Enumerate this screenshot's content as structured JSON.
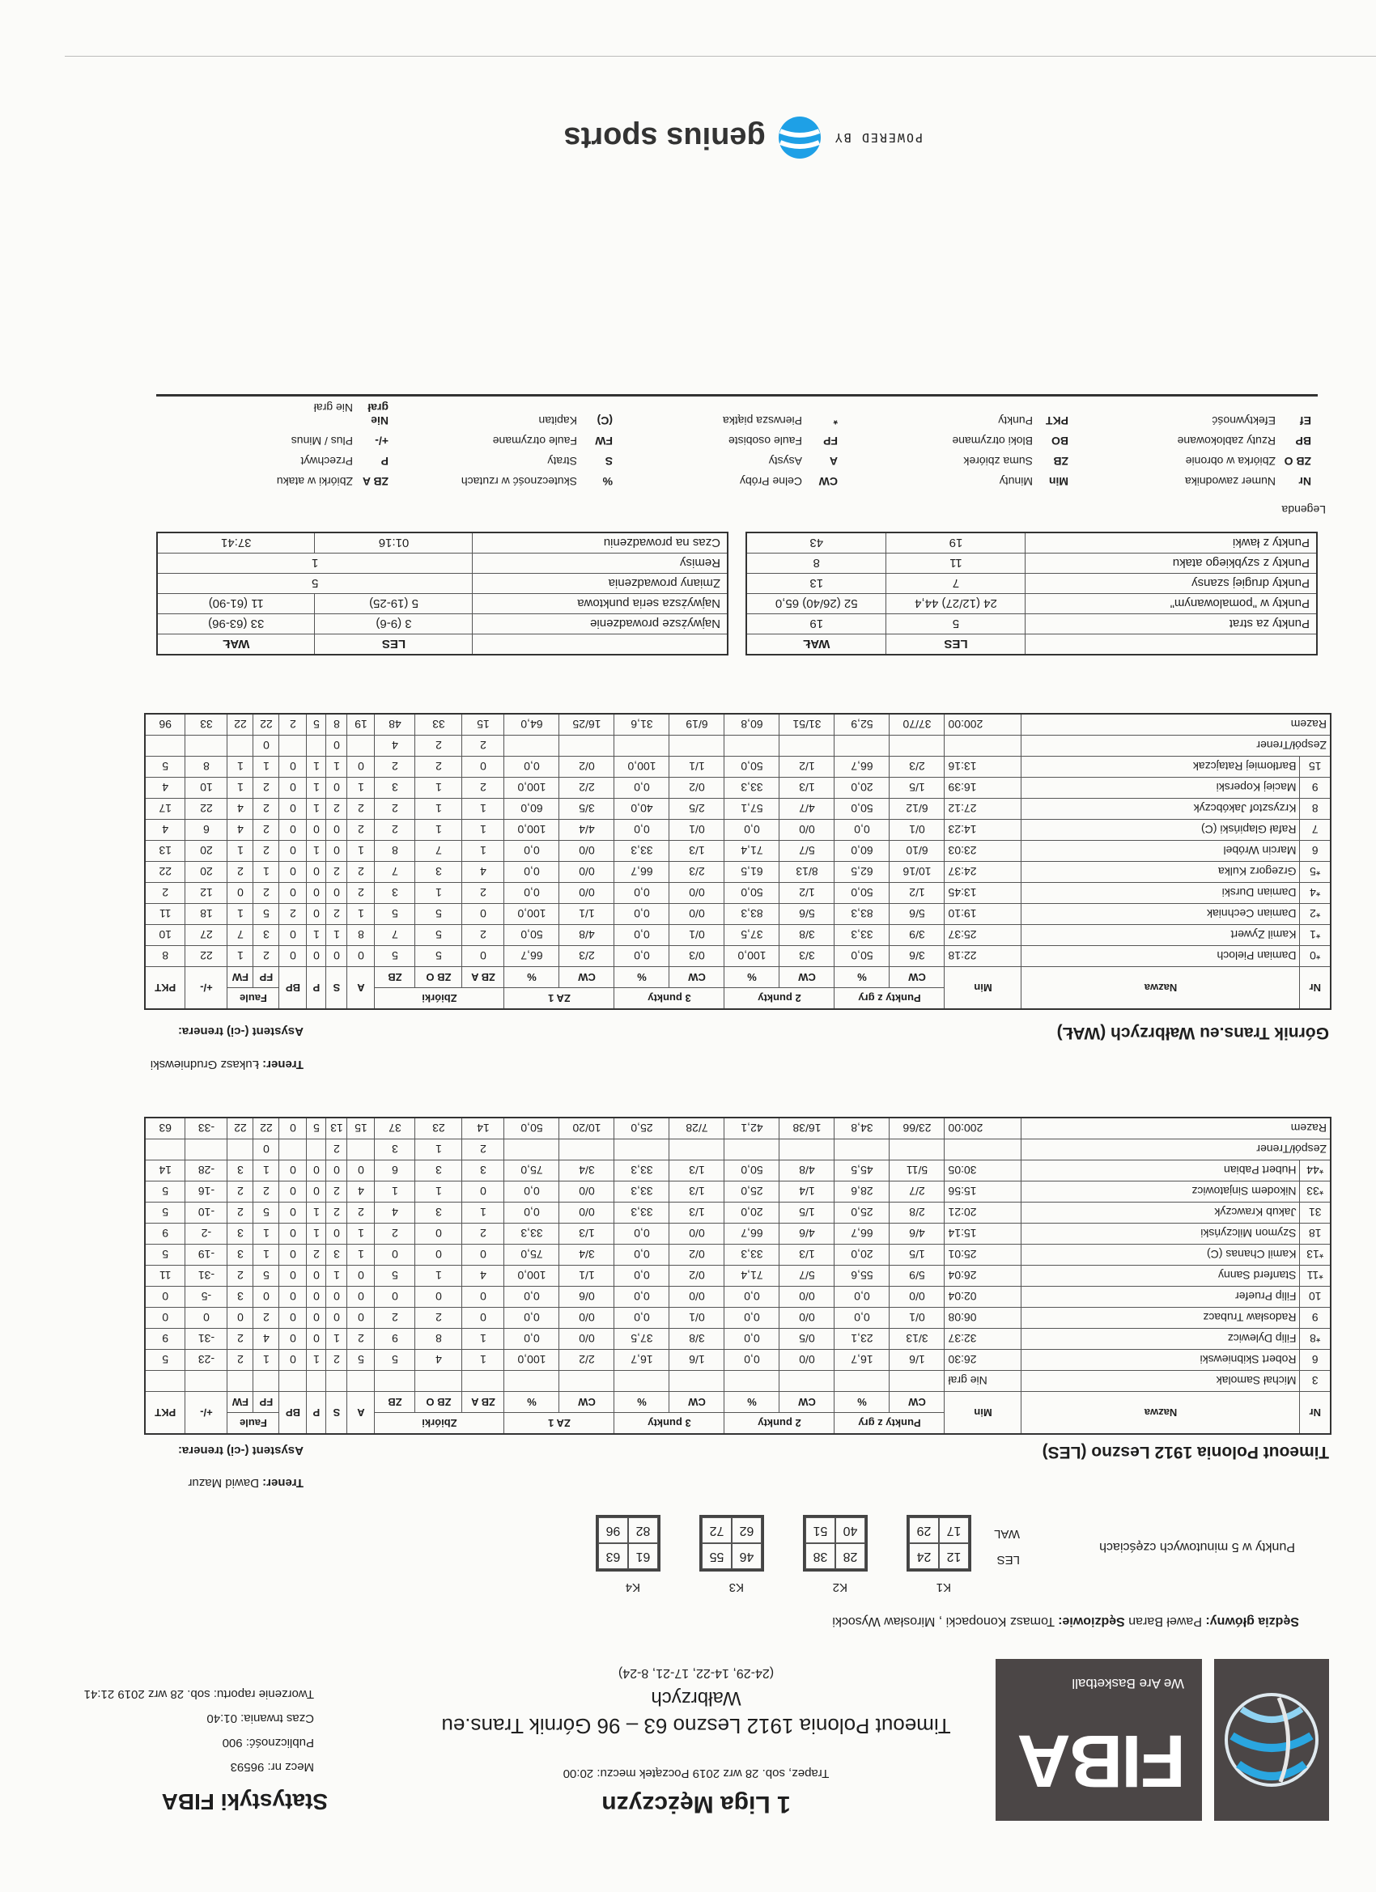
{
  "header": {
    "league": "1 Liga Mężczyzn",
    "venue_line": "Trapez, sob. 28 wrz 2019 Początek meczu: 20:00",
    "match_title": "Timeout Polonia 1912 Leszno 63 – 96 Górnik Trans.eu",
    "match_title_2": "Wałbrzych",
    "quarters_line": "(24-29, 14-22, 17-21, 8-24)",
    "brand_title": "Statystyki FIBA",
    "match_no": "Mecz nr: 96593",
    "attendance": "Publiczność: 900",
    "duration": "Czas trwania: 01:40",
    "report_created": "Tworzenie raportu: sob. 28 wrz 2019 21:41",
    "fiba_logo": "FIBA",
    "fiba_tagline": "We Are Basketball"
  },
  "officials": {
    "chief_label": "Sędzia główny:",
    "chief": "Paweł Baran",
    "refs_label": "Sędziowie:",
    "refs": "Tomasz Konopacki , Mirosław Wysocki"
  },
  "periods": {
    "label": "Punkty w 5 minutowych częściach",
    "teams": [
      "LES",
      "WAL"
    ],
    "quarters": [
      {
        "label": "K1",
        "les": [
          "12",
          "24"
        ],
        "wal": [
          "17",
          "29"
        ]
      },
      {
        "label": "K2",
        "les": [
          "28",
          "38"
        ],
        "wal": [
          "40",
          "51"
        ]
      },
      {
        "label": "K3",
        "les": [
          "46",
          "55"
        ],
        "wal": [
          "62",
          "72"
        ]
      },
      {
        "label": "K4",
        "les": [
          "61",
          "63"
        ],
        "wal": [
          "82",
          "96"
        ]
      }
    ]
  },
  "columns": {
    "nr": "Nr",
    "name": "Nazwa",
    "min": "Min",
    "groups": [
      "Punkty z gry",
      "2 punkty",
      "3 punkty",
      "ZA 1",
      "Zbiórki",
      "Faule"
    ],
    "cw": "CW",
    "pct": "%",
    "zba": "ZB A",
    "zbo": "ZB O",
    "zb": "ZB",
    "a": "A",
    "s": "S",
    "p": "P",
    "bp": "BP",
    "fp": "FP",
    "fw": "FW",
    "pm": "+/-",
    "pkt": "PKT"
  },
  "les": {
    "title": "Timeout Polonia 1912 Leszno (LES)",
    "coach_label": "Trener:",
    "coach": "Dawid Mazur",
    "assistant_label": "Asystent (-ci) trenera:",
    "players": [
      {
        "nr": "3",
        "name": "Michał Samolak",
        "vals": [
          "Nie grał"
        ]
      },
      {
        "nr": "6",
        "name": "Robert Skibniewski",
        "vals": [
          "26:30",
          "1/6",
          "16,7",
          "0/0",
          "0,0",
          "1/6",
          "16,7",
          "2/2",
          "100,0",
          "1",
          "4",
          "5",
          "5",
          "2",
          "1",
          "0",
          "1",
          "2",
          "-23",
          "5"
        ]
      },
      {
        "nr": "*8",
        "name": "Filip Dylewicz",
        "vals": [
          "32:37",
          "3/13",
          "23,1",
          "0/5",
          "0,0",
          "3/8",
          "37,5",
          "0/0",
          "0,0",
          "1",
          "8",
          "9",
          "2",
          "1",
          "0",
          "0",
          "4",
          "2",
          "-31",
          "9"
        ]
      },
      {
        "nr": "9",
        "name": "Radosław Trubacz",
        "vals": [
          "06:08",
          "0/1",
          "0,0",
          "0/0",
          "0,0",
          "0/1",
          "0,0",
          "0/0",
          "0,0",
          "0",
          "2",
          "2",
          "0",
          "0",
          "0",
          "0",
          "2",
          "0",
          "0",
          "0"
        ]
      },
      {
        "nr": "10",
        "name": "Filip Pruefer",
        "vals": [
          "02:04",
          "0/0",
          "0,0",
          "0/0",
          "0,0",
          "0/0",
          "0,0",
          "0/6",
          "0,0",
          "0",
          "0",
          "0",
          "0",
          "0",
          "0",
          "0",
          "0",
          "3",
          "-5",
          "0"
        ]
      },
      {
        "nr": "*11",
        "name": "Stanferd Sanny",
        "vals": [
          "26:04",
          "5/9",
          "55,6",
          "5/7",
          "71,4",
          "0/2",
          "0,0",
          "1/1",
          "100,0",
          "4",
          "1",
          "5",
          "0",
          "1",
          "0",
          "0",
          "5",
          "2",
          "-31",
          "11"
        ]
      },
      {
        "nr": "*13",
        "name": "Kamil Chanas (C)",
        "vals": [
          "25:01",
          "1/5",
          "20,0",
          "1/3",
          "33,3",
          "0/2",
          "0,0",
          "3/4",
          "75,0",
          "0",
          "0",
          "0",
          "1",
          "3",
          "2",
          "0",
          "1",
          "3",
          "-19",
          "5"
        ]
      },
      {
        "nr": "18",
        "name": "Szymon Milczyński",
        "vals": [
          "15:14",
          "4/6",
          "66,7",
          "4/6",
          "66,7",
          "0/0",
          "0,0",
          "1/3",
          "33,3",
          "2",
          "0",
          "2",
          "1",
          "0",
          "1",
          "0",
          "1",
          "3",
          "-2",
          "9"
        ]
      },
      {
        "nr": "31",
        "name": "Jakub Krawczyk",
        "vals": [
          "20:21",
          "2/8",
          "25,0",
          "1/5",
          "20,0",
          "1/3",
          "33,3",
          "0/0",
          "0,0",
          "1",
          "3",
          "4",
          "2",
          "2",
          "1",
          "0",
          "5",
          "2",
          "-10",
          "5"
        ]
      },
      {
        "nr": "*33",
        "name": "Nikodem Sinjatowicz",
        "vals": [
          "15:56",
          "2/7",
          "28,6",
          "1/4",
          "25,0",
          "1/3",
          "33,3",
          "0/0",
          "0,0",
          "0",
          "1",
          "1",
          "4",
          "2",
          "0",
          "0",
          "2",
          "2",
          "-16",
          "5"
        ]
      },
      {
        "nr": "*44",
        "name": "Hubert Pabian",
        "vals": [
          "30:05",
          "5/11",
          "45,5",
          "4/8",
          "50,0",
          "1/3",
          "33,3",
          "3/4",
          "75,0",
          "3",
          "3",
          "6",
          "0",
          "0",
          "0",
          "0",
          "1",
          "3",
          "-28",
          "14"
        ]
      }
    ],
    "team_row": {
      "name": "Zespół/Trener",
      "vals": [
        "",
        "",
        "",
        "",
        "",
        "",
        "",
        "",
        "",
        "2",
        "1",
        "3",
        "",
        "2",
        "",
        "",
        "0",
        "",
        "",
        ""
      ]
    },
    "total_row": {
      "name": "Razem",
      "vals": [
        "200:00",
        "23/66",
        "34,8",
        "16/38",
        "42,1",
        "7/28",
        "25,0",
        "10/20",
        "50,0",
        "14",
        "23",
        "37",
        "15",
        "13",
        "5",
        "0",
        "22",
        "22",
        "-33",
        "63"
      ]
    }
  },
  "wal": {
    "title": "Górnik Trans.eu Wałbrzych (WAŁ)",
    "coach_label": "Trener:",
    "coach": "Łukasz Grudniewski",
    "assistant_label": "Asystent (-ci) trenera:",
    "players": [
      {
        "nr": "*0",
        "name": "Damian Pieloch",
        "vals": [
          "22:18",
          "3/6",
          "50,0",
          "3/3",
          "100,0",
          "0/3",
          "0,0",
          "2/3",
          "66,7",
          "0",
          "5",
          "5",
          "0",
          "0",
          "0",
          "0",
          "2",
          "1",
          "22",
          "8"
        ]
      },
      {
        "nr": "*1",
        "name": "Kamil Zywert",
        "vals": [
          "25:37",
          "3/9",
          "33,3",
          "3/8",
          "37,5",
          "0/1",
          "0,0",
          "4/8",
          "50,0",
          "2",
          "5",
          "7",
          "8",
          "1",
          "1",
          "0",
          "3",
          "7",
          "27",
          "10"
        ]
      },
      {
        "nr": "*2",
        "name": "Damian Cechniak",
        "vals": [
          "19:10",
          "5/6",
          "83,3",
          "5/6",
          "83,3",
          "0/0",
          "0,0",
          "1/1",
          "100,0",
          "0",
          "5",
          "5",
          "1",
          "2",
          "0",
          "2",
          "5",
          "1",
          "18",
          "11"
        ]
      },
      {
        "nr": "*4",
        "name": "Damian Durski",
        "vals": [
          "13:45",
          "1/2",
          "50,0",
          "1/2",
          "50,0",
          "0/0",
          "0,0",
          "0/0",
          "0,0",
          "2",
          "1",
          "3",
          "2",
          "0",
          "0",
          "0",
          "2",
          "0",
          "12",
          "2"
        ]
      },
      {
        "nr": "*5",
        "name": "Grzegorz Kulka",
        "vals": [
          "24:37",
          "10/16",
          "62,5",
          "8/13",
          "61,5",
          "2/3",
          "66,7",
          "0/0",
          "0,0",
          "4",
          "3",
          "7",
          "2",
          "2",
          "0",
          "0",
          "1",
          "2",
          "20",
          "22"
        ]
      },
      {
        "nr": "6",
        "name": "Marcin Wróbel",
        "vals": [
          "23:03",
          "6/10",
          "60,0",
          "5/7",
          "71,4",
          "1/3",
          "33,3",
          "0/0",
          "0,0",
          "1",
          "7",
          "8",
          "1",
          "0",
          "1",
          "0",
          "2",
          "1",
          "20",
          "13"
        ]
      },
      {
        "nr": "7",
        "name": "Rafał Glapiński (C)",
        "vals": [
          "14:23",
          "0/1",
          "0,0",
          "0/0",
          "0,0",
          "0/1",
          "0,0",
          "4/4",
          "100,0",
          "1",
          "1",
          "2",
          "2",
          "0",
          "0",
          "0",
          "2",
          "4",
          "6",
          "4"
        ]
      },
      {
        "nr": "8",
        "name": "Krzysztof Jakóbczyk",
        "vals": [
          "27:12",
          "6/12",
          "50,0",
          "4/7",
          "57,1",
          "2/5",
          "40,0",
          "3/5",
          "60,0",
          "1",
          "1",
          "2",
          "2",
          "2",
          "1",
          "0",
          "2",
          "4",
          "22",
          "17"
        ]
      },
      {
        "nr": "9",
        "name": "Maciej Koperski",
        "vals": [
          "16:39",
          "1/5",
          "20,0",
          "1/3",
          "33,3",
          "0/2",
          "0,0",
          "2/2",
          "100,0",
          "2",
          "1",
          "3",
          "1",
          "0",
          "1",
          "0",
          "2",
          "1",
          "10",
          "4"
        ]
      },
      {
        "nr": "15",
        "name": "Bartłomiej Ratajczak",
        "vals": [
          "13:16",
          "2/3",
          "66,7",
          "1/2",
          "50,0",
          "1/1",
          "100,0",
          "0/2",
          "0,0",
          "0",
          "2",
          "2",
          "0",
          "1",
          "1",
          "0",
          "1",
          "1",
          "8",
          "5"
        ]
      }
    ],
    "team_row": {
      "name": "Zespół/Trener",
      "vals": [
        "",
        "",
        "",
        "",
        "",
        "",
        "",
        "",
        "",
        "2",
        "2",
        "4",
        "",
        "0",
        "",
        "",
        "0",
        "",
        "",
        ""
      ]
    },
    "total_row": {
      "name": "Razem",
      "vals": [
        "200:00",
        "37/70",
        "52,9",
        "31/51",
        "60,8",
        "6/19",
        "31,6",
        "16/25",
        "64,0",
        "15",
        "33",
        "48",
        "19",
        "8",
        "5",
        "2",
        "22",
        "22",
        "33",
        "96"
      ]
    }
  },
  "scoring": {
    "head": [
      "LES",
      "WAŁ"
    ],
    "rows": [
      {
        "label": "Punkty za strat",
        "les": "5",
        "wal": "19"
      },
      {
        "label": "Punkty w \"pomalowanym\"",
        "les": "24 (12/27) 44,4",
        "wal": "52 (26/40) 65,0"
      },
      {
        "label": "Punkty drugiej szansy",
        "les": "7",
        "wal": "13"
      },
      {
        "label": "Punkty z szybkiego ataku",
        "les": "11",
        "wal": "8"
      },
      {
        "label": "Punkty z ławki",
        "les": "19",
        "wal": "43"
      }
    ]
  },
  "leads": {
    "head": [
      "LES",
      "WAŁ"
    ],
    "rows": [
      {
        "label": "Najwyższe prowadzenie",
        "les": "3 (9-6)",
        "wal": "33 (63-96)"
      },
      {
        "label": "Najwyższa seria punktowa",
        "les": "5 (19-25)",
        "wal": "11 (61-90)"
      }
    ],
    "lead_changes_label": "Zmiany prowadzenia",
    "lead_changes": "5",
    "ties_label": "Remisy",
    "ties": "1",
    "time_leading_label": "Czas na prowadzeniu",
    "time_leading_les": "01:16",
    "time_leading_wal": "37:41"
  },
  "legend": {
    "title": "Legenda",
    "items": [
      {
        "abbr": "Nr",
        "desc": "Numer zawodnika"
      },
      {
        "abbr": "Min",
        "desc": "Minuty"
      },
      {
        "abbr": "CW",
        "desc": "Celne Próby"
      },
      {
        "abbr": "%",
        "desc": "Skuteczność w rzutach"
      },
      {
        "abbr": "ZB A",
        "desc": "Zbiórki w ataku"
      },
      {
        "abbr": "ZB O",
        "desc": "Zbiórka w obronie"
      },
      {
        "abbr": "ZB",
        "desc": "Suma zbiórek"
      },
      {
        "abbr": "A",
        "desc": "Asysty"
      },
      {
        "abbr": "S",
        "desc": "Straty"
      },
      {
        "abbr": "P",
        "desc": "Przechwyt"
      },
      {
        "abbr": "BP",
        "desc": "Rzuty zablokowane"
      },
      {
        "abbr": "BO",
        "desc": "Bloki otrzymane"
      },
      {
        "abbr": "FP",
        "desc": "Faule osobiste"
      },
      {
        "abbr": "FW",
        "desc": "Faule otrzymane"
      },
      {
        "abbr": "+/-",
        "desc": "Plus / Minus"
      },
      {
        "abbr": "Ef",
        "desc": "Efektywność"
      },
      {
        "abbr": "PKT",
        "desc": "Punkty"
      },
      {
        "abbr": "*",
        "desc": "Pierwsza piątka"
      },
      {
        "abbr": "(C)",
        "desc": "Kapitan"
      },
      {
        "abbr": "Nie grał",
        "desc": "Nie grał"
      }
    ]
  },
  "footer": {
    "powered_by": "POWERED BY",
    "brand": "genius sports"
  },
  "colors": {
    "logo_bg": "#4b4646",
    "globe_blue": "#2aa6e0",
    "genius_blue": "#1ea0e6"
  }
}
